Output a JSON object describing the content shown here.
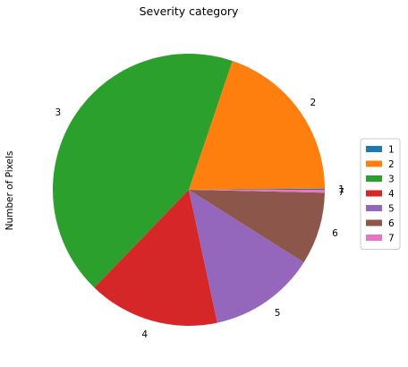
{
  "chart_data": {
    "type": "pie",
    "title": "Severity category",
    "ylabel": "Number of Pixels",
    "legend_position": "right",
    "slices": [
      {
        "label": "1",
        "value": 0.15,
        "color": "#1f77b4"
      },
      {
        "label": "2",
        "value": 20.3,
        "color": "#ff7f0e"
      },
      {
        "label": "3",
        "value": 44.4,
        "color": "#2ca02c"
      },
      {
        "label": "4",
        "value": 16.1,
        "color": "#d62728"
      },
      {
        "label": "5",
        "value": 13.1,
        "color": "#9467bd"
      },
      {
        "label": "6",
        "value": 8.9,
        "color": "#8c564b"
      },
      {
        "label": "7",
        "value": 0.35,
        "color": "#e377c2"
      }
    ],
    "legend": [
      "1",
      "2",
      "3",
      "4",
      "5",
      "6",
      "7"
    ]
  }
}
